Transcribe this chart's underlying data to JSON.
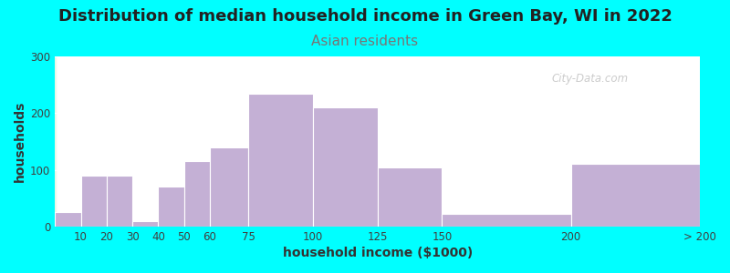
{
  "title": "Distribution of median household income in Green Bay, WI in 2022",
  "subtitle": "Asian residents",
  "xlabel": "household income ($1000)",
  "ylabel": "households",
  "background_outer": "#00FFFF",
  "bar_color": "#C4B0D5",
  "categories": [
    "10",
    "20",
    "30",
    "40",
    "50",
    "60",
    "75",
    "100",
    "125",
    "150",
    "200",
    "> 200"
  ],
  "values": [
    25,
    90,
    90,
    10,
    70,
    115,
    140,
    235,
    210,
    105,
    22,
    110
  ],
  "left_edges": [
    0,
    10,
    20,
    30,
    40,
    50,
    60,
    75,
    100,
    125,
    150,
    200
  ],
  "widths": [
    10,
    10,
    10,
    10,
    10,
    10,
    15,
    25,
    25,
    25,
    50,
    50
  ],
  "xtick_positions": [
    10,
    20,
    30,
    40,
    50,
    60,
    75,
    100,
    125,
    150,
    200,
    250
  ],
  "xtick_labels": [
    "10",
    "20",
    "30",
    "40",
    "50",
    "60",
    "75",
    "100",
    "125",
    "150",
    "200",
    "> 200"
  ],
  "ylim": [
    0,
    300
  ],
  "yticks": [
    0,
    100,
    200,
    300
  ],
  "watermark": "City-Data.com",
  "title_fontsize": 13,
  "subtitle_fontsize": 11,
  "axis_label_fontsize": 10,
  "tick_fontsize": 8.5
}
